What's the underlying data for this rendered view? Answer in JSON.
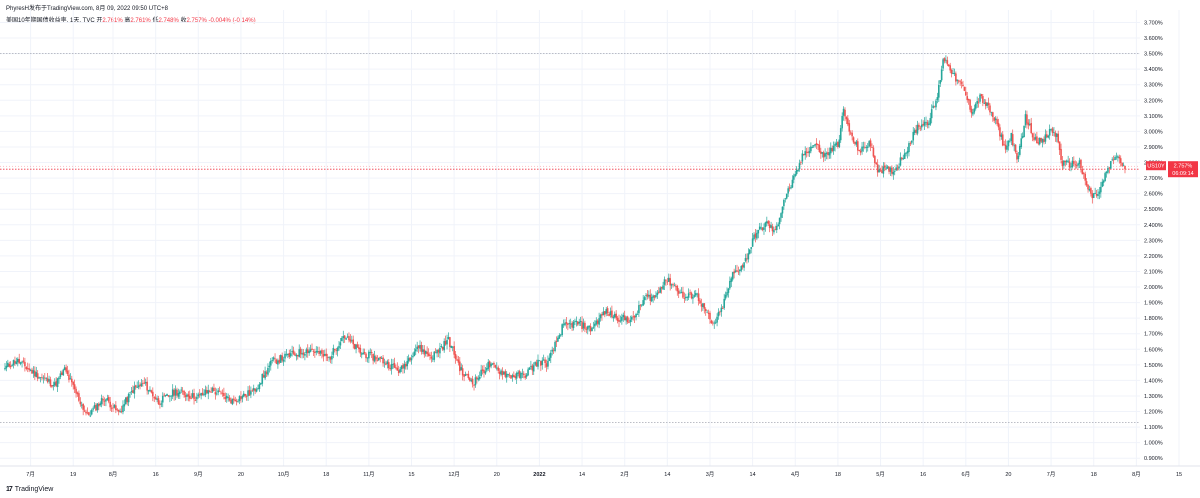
{
  "header": {
    "caption": "PhyresH发布于TradingView.com, 8月 09, 2022 09:50 UTC+8",
    "symbol_line": "美国10年期国债收益率, 1天, TVC",
    "ohlc": [
      {
        "label": "开",
        "value": "2.761%"
      },
      {
        "label": "高",
        "value": "2.761%"
      },
      {
        "label": "低",
        "value": "2.748%"
      },
      {
        "label": "收",
        "value": "2.757%"
      }
    ],
    "change": "-0.004% (-0.14%)"
  },
  "brand": {
    "logo_text": "17",
    "name": "TradingView"
  },
  "colors": {
    "up": "#26a69a",
    "down": "#ef5350",
    "grid": "#f0f3fa",
    "axis_text": "#131722",
    "price_tag": "#f23645"
  },
  "chart_data": {
    "type": "candlestick",
    "y_unit": "%",
    "ylim": [
      0.85,
      3.78
    ],
    "y_ticks": [
      "0.900%",
      "1.000%",
      "1.100%",
      "1.200%",
      "1.300%",
      "1.400%",
      "1.500%",
      "1.600%",
      "1.700%",
      "1.800%",
      "1.900%",
      "2.000%",
      "2.100%",
      "2.200%",
      "2.300%",
      "2.400%",
      "2.500%",
      "2.600%",
      "2.700%",
      "2.800%",
      "2.900%",
      "3.000%",
      "3.100%",
      "3.200%",
      "3.300%",
      "3.400%",
      "3.500%",
      "3.600%",
      "3.700%"
    ],
    "x_ticks": [
      {
        "label": "7月",
        "bar": 18
      },
      {
        "label": "19",
        "bar": 48
      },
      {
        "label": "8月",
        "bar": 76
      },
      {
        "label": "16",
        "bar": 106
      },
      {
        "label": "9月",
        "bar": 136
      },
      {
        "label": "20",
        "bar": 166
      },
      {
        "label": "10月",
        "bar": 196
      },
      {
        "label": "18",
        "bar": 226
      },
      {
        "label": "11月",
        "bar": 256
      },
      {
        "label": "15",
        "bar": 286
      },
      {
        "label": "12月",
        "bar": 316
      },
      {
        "label": "20",
        "bar": 346
      },
      {
        "label": "2022",
        "bar": 376,
        "bold": true
      },
      {
        "label": "14",
        "bar": 406
      },
      {
        "label": "2月",
        "bar": 436
      },
      {
        "label": "14",
        "bar": 466
      },
      {
        "label": "3月",
        "bar": 496
      },
      {
        "label": "14",
        "bar": 526
      },
      {
        "label": "4月",
        "bar": 556
      },
      {
        "label": "18",
        "bar": 586
      },
      {
        "label": "5月",
        "bar": 616
      },
      {
        "label": "16",
        "bar": 646
      },
      {
        "label": "6月",
        "bar": 676
      },
      {
        "label": "20",
        "bar": 706
      },
      {
        "label": "7月",
        "bar": 736
      },
      {
        "label": "18",
        "bar": 766
      },
      {
        "label": "8月",
        "bar": 796
      },
      {
        "label": "15",
        "bar": 826
      }
    ],
    "reference_lines": [
      3.5,
      1.13
    ],
    "last_price": {
      "ticker": "US10Y",
      "value": "2.757%",
      "countdown": "06:09:14",
      "level": 2.757
    },
    "anchors": [
      [
        0,
        1.48
      ],
      [
        8,
        1.53
      ],
      [
        20,
        1.45
      ],
      [
        35,
        1.37
      ],
      [
        42,
        1.47
      ],
      [
        52,
        1.28
      ],
      [
        58,
        1.17
      ],
      [
        70,
        1.29
      ],
      [
        80,
        1.19
      ],
      [
        90,
        1.34
      ],
      [
        98,
        1.38
      ],
      [
        108,
        1.26
      ],
      [
        120,
        1.33
      ],
      [
        135,
        1.29
      ],
      [
        145,
        1.34
      ],
      [
        160,
        1.27
      ],
      [
        175,
        1.33
      ],
      [
        188,
        1.52
      ],
      [
        200,
        1.56
      ],
      [
        215,
        1.6
      ],
      [
        228,
        1.54
      ],
      [
        238,
        1.69
      ],
      [
        250,
        1.58
      ],
      [
        265,
        1.53
      ],
      [
        278,
        1.46
      ],
      [
        290,
        1.62
      ],
      [
        300,
        1.55
      ],
      [
        312,
        1.66
      ],
      [
        322,
        1.44
      ],
      [
        330,
        1.39
      ],
      [
        340,
        1.5
      ],
      [
        355,
        1.43
      ],
      [
        365,
        1.43
      ],
      [
        375,
        1.52
      ],
      [
        382,
        1.51
      ],
      [
        392,
        1.74
      ],
      [
        402,
        1.77
      ],
      [
        412,
        1.73
      ],
      [
        422,
        1.84
      ],
      [
        432,
        1.8
      ],
      [
        442,
        1.79
      ],
      [
        450,
        1.93
      ],
      [
        458,
        1.94
      ],
      [
        464,
        2.05
      ],
      [
        470,
        2.02
      ],
      [
        478,
        1.93
      ],
      [
        486,
        1.96
      ],
      [
        492,
        1.86
      ],
      [
        498,
        1.75
      ],
      [
        504,
        1.85
      ],
      [
        512,
        2.08
      ],
      [
        520,
        2.15
      ],
      [
        528,
        2.34
      ],
      [
        536,
        2.41
      ],
      [
        542,
        2.35
      ],
      [
        548,
        2.56
      ],
      [
        556,
        2.71
      ],
      [
        562,
        2.86
      ],
      [
        570,
        2.92
      ],
      [
        576,
        2.84
      ],
      [
        580,
        2.87
      ],
      [
        586,
        2.92
      ],
      [
        590,
        3.13
      ],
      [
        596,
        2.95
      ],
      [
        602,
        2.87
      ],
      [
        608,
        2.93
      ],
      [
        614,
        2.76
      ],
      [
        620,
        2.75
      ],
      [
        626,
        2.75
      ],
      [
        634,
        2.88
      ],
      [
        642,
        3.03
      ],
      [
        650,
        3.07
      ],
      [
        656,
        3.22
      ],
      [
        660,
        3.47
      ],
      [
        664,
        3.43
      ],
      [
        668,
        3.35
      ],
      [
        674,
        3.28
      ],
      [
        680,
        3.13
      ],
      [
        686,
        3.22
      ],
      [
        692,
        3.15
      ],
      [
        698,
        3.04
      ],
      [
        704,
        2.88
      ],
      [
        708,
        2.98
      ],
      [
        712,
        2.8
      ],
      [
        718,
        3.09
      ],
      [
        724,
        2.96
      ],
      [
        730,
        2.93
      ],
      [
        736,
        3.01
      ],
      [
        740,
        2.97
      ],
      [
        744,
        2.79
      ],
      [
        750,
        2.79
      ],
      [
        756,
        2.8
      ],
      [
        760,
        2.67
      ],
      [
        765,
        2.58
      ],
      [
        770,
        2.61
      ],
      [
        775,
        2.74
      ],
      [
        782,
        2.85
      ],
      [
        788,
        2.757
      ]
    ]
  }
}
